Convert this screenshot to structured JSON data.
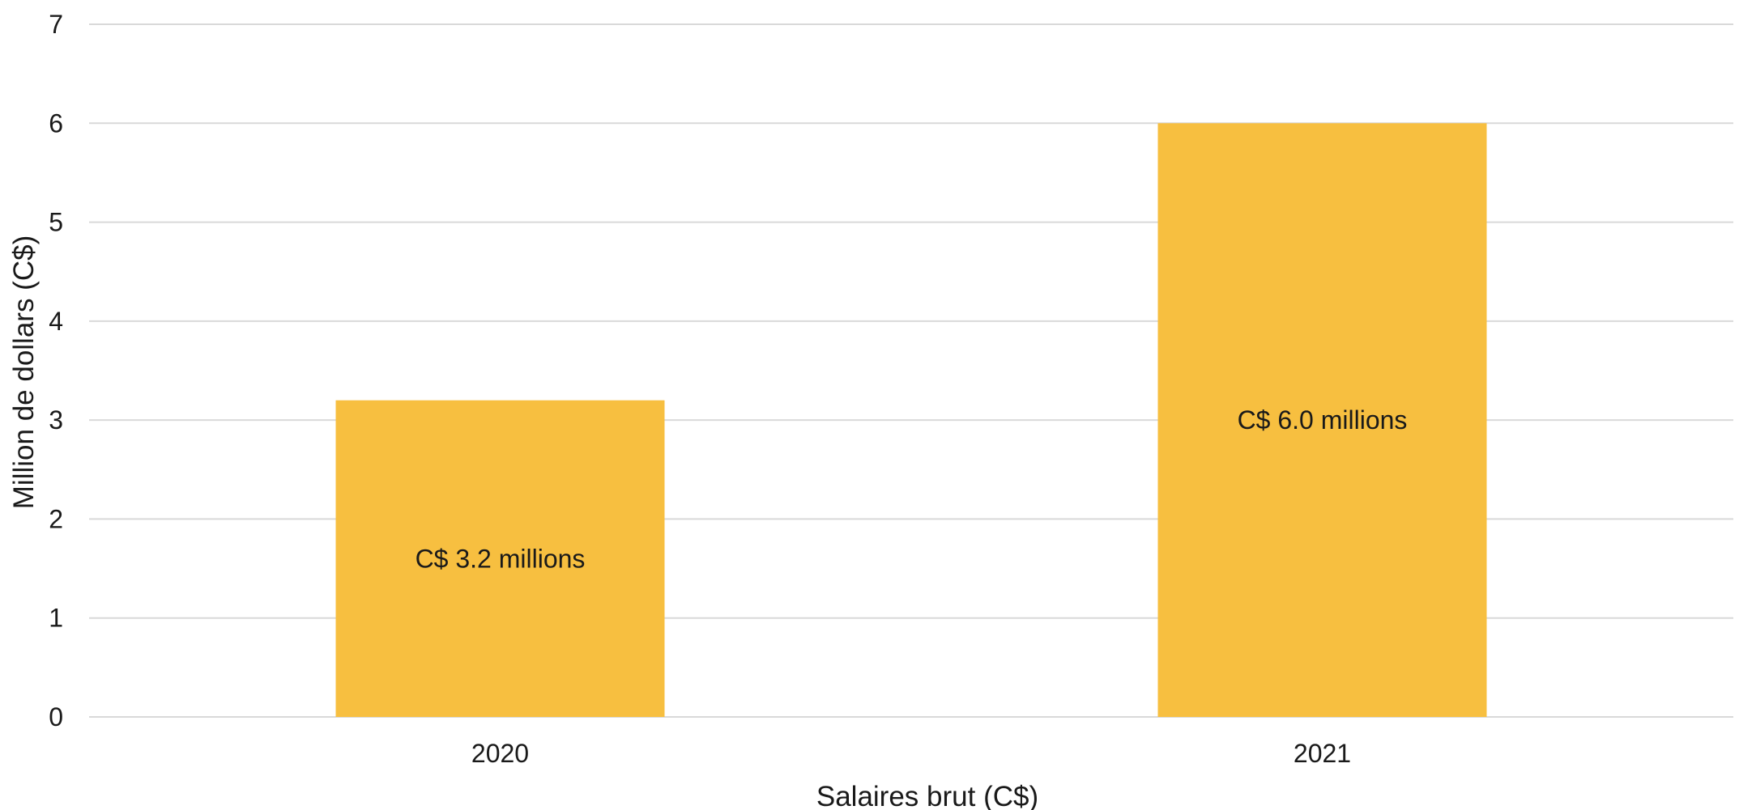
{
  "chart_data": {
    "type": "bar",
    "title": "",
    "xlabel": "Salaires brut (C$)",
    "ylabel": "Million de dollars (C$)",
    "categories": [
      "2020",
      "2021"
    ],
    "values": [
      3.2,
      6.0
    ],
    "data_labels": [
      "C$ 3.2 millions",
      "C$ 6.0 millions"
    ],
    "ylim": [
      0,
      7
    ],
    "yticks": [
      "0",
      "1",
      "2",
      "3",
      "4",
      "5",
      "6",
      "7"
    ],
    "grid": true,
    "legend": "none",
    "bar_color": "#F7BF40"
  }
}
